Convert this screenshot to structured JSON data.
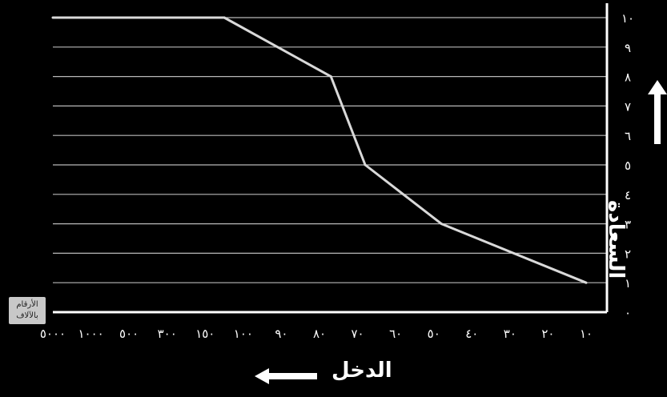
{
  "chart_data": {
    "type": "line",
    "xlabel": "الدخل",
    "ylabel": "السعادة",
    "unit_note": [
      "الأرقام",
      "بالآلاف"
    ],
    "x_tick_labels": [
      "١٠",
      "٢٠",
      "٣٠",
      "٤٠",
      "٥٠",
      "٦٠",
      "٧٠",
      "٨٠",
      "٩٠",
      "١٠٠",
      "١٥٠",
      "٣٠٠",
      "٥٠٠",
      "١٠٠٠",
      "٥٠٠٠"
    ],
    "y_tick_labels": [
      "٠",
      "١",
      "٢",
      "٣",
      "٤",
      "٥",
      "٦",
      "٧",
      "٨",
      "٩",
      "١٠"
    ],
    "ylim": [
      0,
      10
    ],
    "series": [
      {
        "x": [
          0,
          3.8,
          5.8,
          6.7,
          9.5,
          15
        ],
        "y": [
          1,
          3,
          5,
          8,
          10,
          10
        ]
      }
    ],
    "x_direction": "right-to-left",
    "grid": "horizontal",
    "line_color": "#d9d9d9",
    "axis_color": "#ffffff"
  }
}
